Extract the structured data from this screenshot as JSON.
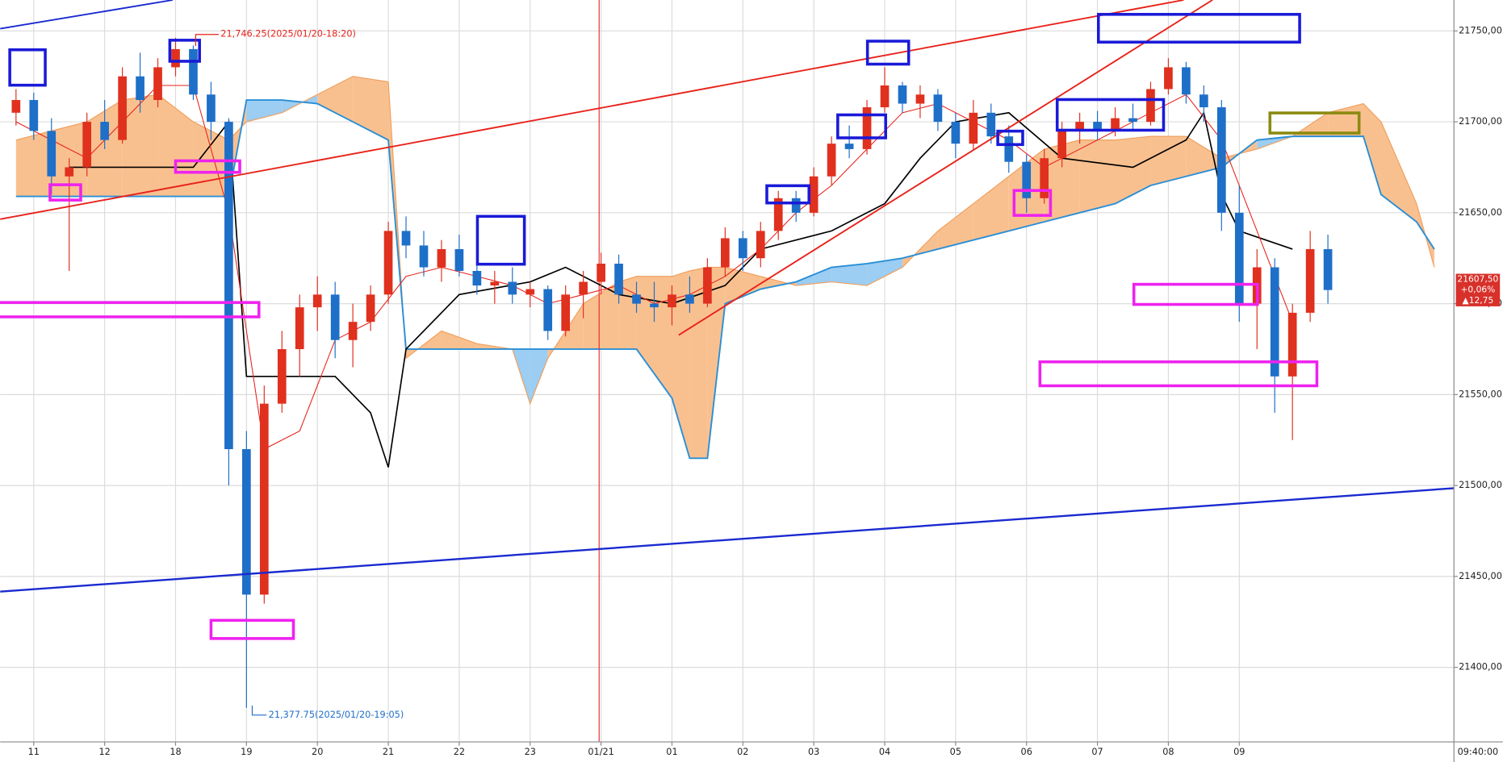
{
  "chart_data": {
    "type": "candlestick",
    "categories": [
      null,
      "11",
      null,
      null,
      null,
      "12",
      null,
      null,
      null,
      "18",
      null,
      null,
      null,
      "19",
      null,
      null,
      null,
      "20",
      null,
      null,
      null,
      "21",
      null,
      null,
      null,
      "22",
      null,
      null,
      null,
      "23",
      null,
      null,
      null,
      "01/21",
      null,
      null,
      null,
      "01",
      null,
      null,
      null,
      "02",
      null,
      null,
      null,
      "03",
      null,
      null,
      null,
      "04",
      null,
      null,
      null,
      "05",
      null,
      null,
      null,
      "06",
      null,
      null,
      null,
      "07",
      null,
      null,
      null,
      "08",
      null,
      null,
      null,
      "09",
      null,
      null,
      null,
      null,
      null
    ],
    "open": [
      21705,
      21712,
      21695,
      21670,
      21675,
      21700,
      21690,
      21725,
      21712,
      21730,
      21740,
      21715,
      21700,
      21520,
      21440,
      21545,
      21575,
      21598,
      21605,
      21580,
      21590,
      21605,
      21640,
      21632,
      21620,
      21630,
      21618,
      21610,
      21612,
      21605,
      21608,
      21585,
      21605,
      21612,
      21622,
      21605,
      21600,
      21598,
      21605,
      21600,
      21620,
      21636,
      21625,
      21640,
      21658,
      21650,
      21670,
      21688,
      21685,
      21708,
      21720,
      21710,
      21715,
      21700,
      21688,
      21705,
      21692,
      21678,
      21658,
      21680,
      21695,
      21700,
      21695,
      21702,
      21700,
      21718,
      21730,
      21715,
      21708,
      21650,
      21600,
      21620,
      21560,
      21595,
      21630
    ],
    "high": [
      21718,
      21716,
      21702,
      21680,
      21705,
      21712,
      21730,
      21738,
      21735,
      21746.25,
      21742,
      21722,
      21702,
      21530,
      21555,
      21585,
      21605,
      21615,
      21612,
      21600,
      21610,
      21645,
      21648,
      21640,
      21635,
      21638,
      21625,
      21618,
      21620,
      21612,
      21610,
      21610,
      21618,
      21628,
      21627,
      21612,
      21612,
      21610,
      21615,
      21625,
      21642,
      21640,
      21645,
      21662,
      21662,
      21675,
      21692,
      21698,
      21712,
      21730,
      21722,
      21720,
      21718,
      21705,
      21712,
      21710,
      21698,
      21682,
      21685,
      21700,
      21705,
      21706,
      21708,
      21710,
      21722,
      21735,
      21733,
      21720,
      21712,
      21665,
      21630,
      21625,
      21600,
      21640,
      21638
    ],
    "low": [
      21698,
      21690,
      21660,
      21618,
      21670,
      21685,
      21688,
      21705,
      21708,
      21725,
      21712,
      21690,
      21500,
      21377.75,
      21435,
      21540,
      21560,
      21585,
      21570,
      21565,
      21585,
      21600,
      21625,
      21615,
      21612,
      21615,
      21605,
      21600,
      21600,
      21598,
      21580,
      21582,
      21592,
      21605,
      21600,
      21595,
      21590,
      21588,
      21595,
      21598,
      21615,
      21618,
      21620,
      21635,
      21645,
      21648,
      21665,
      21680,
      21682,
      21705,
      21705,
      21702,
      21695,
      21680,
      21685,
      21688,
      21672,
      21650,
      21655,
      21675,
      21688,
      21690,
      21692,
      21695,
      21698,
      21715,
      21710,
      21700,
      21640,
      21590,
      21575,
      21540,
      21525,
      21590,
      21600
    ],
    "close": [
      21712,
      21695,
      21670,
      21675,
      21700,
      21690,
      21725,
      21712,
      21730,
      21740,
      21715,
      21700,
      21520,
      21440,
      21545,
      21575,
      21598,
      21605,
      21580,
      21590,
      21605,
      21640,
      21632,
      21620,
      21630,
      21618,
      21610,
      21612,
      21605,
      21608,
      21585,
      21605,
      21612,
      21622,
      21605,
      21600,
      21598,
      21605,
      21600,
      21620,
      21636,
      21625,
      21640,
      21658,
      21650,
      21670,
      21688,
      21685,
      21708,
      21720,
      21710,
      21715,
      21700,
      21688,
      21705,
      21692,
      21678,
      21658,
      21680,
      21695,
      21700,
      21695,
      21702,
      21700,
      21718,
      21730,
      21715,
      21708,
      21650,
      21600,
      21620,
      21560,
      21595,
      21630,
      21607.5
    ],
    "up_color": "#e0301e",
    "down_color": "#1e6fc8",
    "cloud": {
      "x": [
        0,
        2,
        4,
        6,
        8,
        10,
        12,
        13,
        15,
        17,
        19,
        21,
        22,
        24,
        26,
        28,
        29,
        30,
        32,
        34,
        35,
        37,
        38,
        39,
        40,
        42,
        44,
        46,
        48,
        50,
        52,
        54,
        56,
        58,
        60,
        62,
        64,
        66,
        68,
        70,
        72,
        74,
        76,
        77,
        79,
        80
      ],
      "span_a": [
        21690,
        21695,
        21700,
        21712,
        21715,
        21700,
        21690,
        21700,
        21705,
        21715,
        21725,
        21722,
        21570,
        21585,
        21578,
        21575,
        21545,
        21570,
        21600,
        21612,
        21615,
        21615,
        21618,
        21620,
        21620,
        21615,
        21610,
        21612,
        21610,
        21620,
        21640,
        21655,
        21670,
        21685,
        21690,
        21690,
        21692,
        21692,
        21680,
        21685,
        21692,
        21705,
        21710,
        21700,
        21655,
        21620
      ],
      "span_b": [
        21659,
        21659,
        21659,
        21659,
        21659,
        21659,
        21659,
        21712,
        21712,
        21710,
        21700,
        21690,
        21575,
        21575,
        21575,
        21575,
        21575,
        21575,
        21575,
        21575,
        21575,
        21548,
        21515,
        21515,
        21600,
        21608,
        21612,
        21620,
        21622,
        21625,
        21630,
        21635,
        21640,
        21645,
        21650,
        21655,
        21665,
        21670,
        21675,
        21690,
        21692,
        21692,
        21692,
        21660,
        21645,
        21630
      ],
      "up_color": "#f9c08f",
      "down_color": "#9ccdf2",
      "line_a_color": "#f0a060",
      "line_b_color": "#2a8fd6"
    },
    "base_line": {
      "color": "#000000",
      "x": [
        3,
        10,
        12,
        13,
        18,
        20,
        21,
        22,
        25,
        29,
        31,
        34,
        37,
        40,
        42,
        46,
        49,
        51,
        53,
        56,
        59,
        63,
        66,
        67,
        68,
        69,
        72
      ],
      "values": [
        21675,
        21675,
        21700,
        21560,
        21560,
        21540,
        21510,
        21575,
        21605,
        21612,
        21620,
        21605,
        21600,
        21610,
        21630,
        21640,
        21655,
        21680,
        21700,
        21705,
        21680,
        21675,
        21690,
        21705,
        21660,
        21640,
        21630
      ]
    },
    "conversion_line": {
      "color": "#e8221a",
      "x": [
        0,
        2,
        4,
        6,
        8,
        10,
        12,
        14,
        16,
        18,
        20,
        22,
        24,
        26,
        28,
        30,
        32,
        34,
        36,
        38,
        40,
        42,
        44,
        46,
        48,
        50,
        52,
        54,
        56,
        58,
        60,
        62,
        64,
        66,
        68,
        70,
        72
      ],
      "values": [
        21700,
        21690,
        21680,
        21700,
        21720,
        21720,
        21650,
        21520,
        21530,
        21580,
        21590,
        21615,
        21620,
        21615,
        21610,
        21600,
        21605,
        21610,
        21600,
        21605,
        21615,
        21630,
        21650,
        21665,
        21685,
        21705,
        21710,
        21700,
        21690,
        21675,
        21685,
        21695,
        21705,
        21715,
        21690,
        21640,
        21590
      ]
    },
    "ylim": [
      21359,
      21767
    ],
    "yticks": [
      {
        "value": 21400,
        "label": "21400,00"
      },
      {
        "value": 21450,
        "label": "21450,00"
      },
      {
        "value": 21500,
        "label": "21500,00"
      },
      {
        "value": 21550,
        "label": "21550,00"
      },
      {
        "value": 21600,
        "label": "21600,00"
      },
      {
        "value": 21650,
        "label": "21650,00"
      },
      {
        "value": 21700,
        "label": "21700,00"
      },
      {
        "value": 21750,
        "label": "21750,00"
      }
    ],
    "grid": true,
    "annotations": {
      "high_note": "21,746.25(2025/01/20-18:20)",
      "low_note": "21,377.75(2025/01/20-19:05)",
      "last_price": "21607,50",
      "change_pct": "+0,06%",
      "change": "▲12,75",
      "last_time": "09:40:00"
    }
  }
}
